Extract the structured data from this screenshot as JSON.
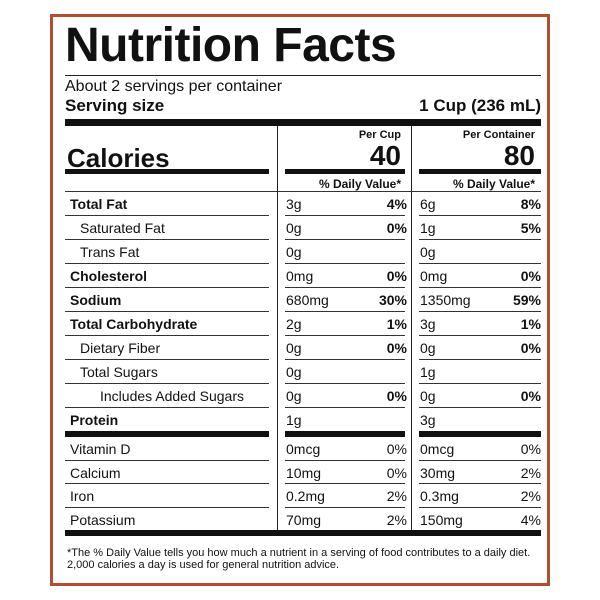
{
  "title": "Nutrition Facts",
  "servings_per_container": "About 2 servings per container",
  "serving_size_label": "Serving size",
  "serving_size_value": "1 Cup (236 mL)",
  "calories_label": "Calories",
  "columns": [
    {
      "header": "Per Cup",
      "calories": "40",
      "dv_header": "% Daily Value*"
    },
    {
      "header": "Per Container",
      "calories": "80",
      "dv_header": "% Daily Value*"
    }
  ],
  "nutrients": [
    {
      "name": "Total Fat",
      "cup_amount": "3g",
      "cup_dv": "4%",
      "container_amount": "6g",
      "container_dv": "8%"
    },
    {
      "name": "Saturated Fat",
      "cup_amount": "0g",
      "cup_dv": "0%",
      "container_amount": "1g",
      "container_dv": "5%"
    },
    {
      "name": "Trans Fat",
      "cup_amount": "0g",
      "cup_dv": "",
      "container_amount": "0g",
      "container_dv": ""
    },
    {
      "name": "Cholesterol",
      "cup_amount": "0mg",
      "cup_dv": "0%",
      "container_amount": "0mg",
      "container_dv": "0%"
    },
    {
      "name": "Sodium",
      "cup_amount": "680mg",
      "cup_dv": "30%",
      "container_amount": "1350mg",
      "container_dv": "59%"
    },
    {
      "name": "Total Carbohydrate",
      "cup_amount": "2g",
      "cup_dv": "1%",
      "container_amount": "3g",
      "container_dv": "1%"
    },
    {
      "name": "Dietary Fiber",
      "cup_amount": "0g",
      "cup_dv": "0%",
      "container_amount": "0g",
      "container_dv": "0%"
    },
    {
      "name": "Total Sugars",
      "cup_amount": "0g",
      "cup_dv": "",
      "container_amount": "1g",
      "container_dv": ""
    },
    {
      "name": "Includes Added Sugars",
      "cup_amount": "0g",
      "cup_dv": "0%",
      "container_amount": "0g",
      "container_dv": "0%"
    },
    {
      "name": "Protein",
      "cup_amount": "1g",
      "cup_dv": "",
      "container_amount": "3g",
      "container_dv": ""
    }
  ],
  "vitamins": [
    {
      "name": "Vitamin D",
      "cup_amount": "0mcg",
      "cup_dv": "0%",
      "container_amount": "0mcg",
      "container_dv": "0%"
    },
    {
      "name": "Calcium",
      "cup_amount": "10mg",
      "cup_dv": "0%",
      "container_amount": "30mg",
      "container_dv": "2%"
    },
    {
      "name": "Iron",
      "cup_amount": "0.2mg",
      "cup_dv": "2%",
      "container_amount": "0.3mg",
      "container_dv": "2%"
    },
    {
      "name": "Potassium",
      "cup_amount": "70mg",
      "cup_dv": "2%",
      "container_amount": "150mg",
      "container_dv": "4%"
    }
  ],
  "footnote": "*The % Daily Value tells you how much a nutrient in a serving of food contributes to a daily diet. 2,000 calories a day is used for general nutrition advice.",
  "colors": {
    "border": "#b14e2d",
    "text": "#111111"
  }
}
